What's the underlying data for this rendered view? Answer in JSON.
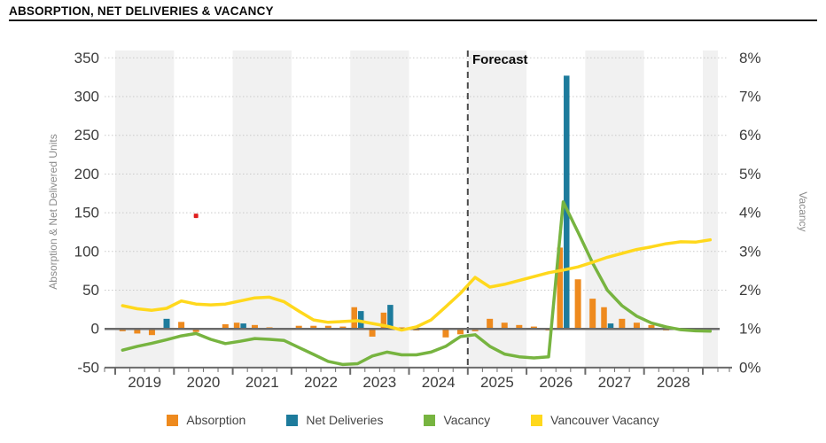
{
  "header": {
    "title": "ABSORPTION, NET DELIVERIES & VACANCY"
  },
  "chart_data": {
    "type": "combo-bar-line",
    "left_axis": {
      "title": "Absorption & Net Delivered Units",
      "tick_labels": [
        "350",
        "300",
        "250",
        "200",
        "150",
        "100",
        "50",
        "0",
        "-50"
      ],
      "tick_values": [
        350,
        300,
        250,
        200,
        150,
        100,
        50,
        0,
        -50
      ],
      "ylim": [
        -50,
        350
      ]
    },
    "right_axis": {
      "title": "Vacancy",
      "tick_labels": [
        "8%",
        "7%",
        "6%",
        "5%",
        "4%",
        "3%",
        "2%",
        "1%",
        "0%"
      ],
      "tick_values": [
        8,
        7,
        6,
        5,
        4,
        3,
        2,
        1,
        0
      ],
      "ylim": [
        0,
        8
      ]
    },
    "x_axis": {
      "years": [
        "2019",
        "2020",
        "2021",
        "2022",
        "2023",
        "2024",
        "2025",
        "2026",
        "2027",
        "2028"
      ]
    },
    "forecast": {
      "label": "Forecast",
      "starts_at": "2025 Q1"
    },
    "quarters": [
      "2019 Q1",
      "2019 Q2",
      "2019 Q3",
      "2019 Q4",
      "2020 Q1",
      "2020 Q2",
      "2020 Q3",
      "2020 Q4",
      "2021 Q1",
      "2021 Q2",
      "2021 Q3",
      "2021 Q4",
      "2022 Q1",
      "2022 Q2",
      "2022 Q3",
      "2022 Q4",
      "2023 Q1",
      "2023 Q2",
      "2023 Q3",
      "2023 Q4",
      "2024 Q1",
      "2024 Q2",
      "2024 Q3",
      "2024 Q4",
      "2025 Q1",
      "2025 Q2",
      "2025 Q3",
      "2025 Q4",
      "2026 Q1",
      "2026 Q2",
      "2026 Q3",
      "2026 Q4",
      "2027 Q1",
      "2027 Q2",
      "2027 Q3",
      "2027 Q4",
      "2028 Q1",
      "2028 Q2",
      "2028 Q3",
      "2028 Q4",
      "2029 Q1"
    ],
    "series": [
      {
        "name": "Absorption",
        "type": "bar",
        "axis": "left",
        "color": "#EE8A1E",
        "values": [
          -3,
          -6,
          -8,
          null,
          9,
          -4,
          null,
          6,
          8,
          5,
          2,
          null,
          4,
          4,
          4,
          3,
          28,
          -10,
          21,
          2,
          -2,
          null,
          -11,
          -7,
          -3,
          13,
          8,
          5,
          3,
          -2,
          105,
          64,
          39,
          28,
          13,
          8,
          5,
          -2,
          -2,
          -2,
          null
        ]
      },
      {
        "name": "Net Deliveries",
        "type": "bar",
        "axis": "left",
        "color": "#1D7B9C",
        "values": [
          null,
          null,
          null,
          13,
          null,
          null,
          null,
          null,
          7,
          null,
          null,
          null,
          null,
          null,
          null,
          null,
          23,
          null,
          31,
          null,
          null,
          null,
          null,
          null,
          null,
          null,
          null,
          null,
          null,
          null,
          327,
          null,
          null,
          7,
          null,
          null,
          null,
          null,
          null,
          null,
          null
        ]
      },
      {
        "name": "Vacancy",
        "type": "line",
        "axis": "right",
        "color": "#77B440",
        "values": [
          0.45,
          0.55,
          0.63,
          0.72,
          0.82,
          0.88,
          0.73,
          0.62,
          0.68,
          0.75,
          0.73,
          0.7,
          0.52,
          0.34,
          0.16,
          0.08,
          0.1,
          0.3,
          0.4,
          0.33,
          0.33,
          0.4,
          0.55,
          0.8,
          0.85,
          0.55,
          0.35,
          0.28,
          0.25,
          0.28,
          4.28,
          3.5,
          2.7,
          2.0,
          1.6,
          1.33,
          1.15,
          1.05,
          0.98,
          0.95,
          0.94
        ]
      },
      {
        "name": "Vancouver Vacancy",
        "type": "line",
        "axis": "right",
        "color": "#FFD81C",
        "values": [
          1.6,
          1.52,
          1.48,
          1.53,
          1.72,
          1.64,
          1.62,
          1.64,
          1.72,
          1.8,
          1.82,
          1.7,
          1.46,
          1.23,
          1.17,
          1.19,
          1.21,
          1.14,
          1.07,
          0.97,
          1.05,
          1.23,
          1.57,
          1.92,
          2.33,
          2.08,
          2.15,
          2.25,
          2.35,
          2.45,
          2.52,
          2.6,
          2.72,
          2.85,
          2.95,
          3.05,
          3.12,
          3.2,
          3.25,
          3.24,
          3.3
        ]
      }
    ],
    "annotations": {
      "red_marker": {
        "quarter": "2020 Q2",
        "value_units": 146,
        "color": "#E01F1F"
      }
    },
    "grid": "dotted horizontal",
    "year_band_color": "#F1F1F1"
  },
  "legend": {
    "items": [
      {
        "label": "Absorption",
        "color": "#EE8A1E"
      },
      {
        "label": "Net Deliveries",
        "color": "#1D7B9C"
      },
      {
        "label": "Vacancy",
        "color": "#77B440"
      },
      {
        "label": "Vancouver Vacancy",
        "color": "#FFD81C"
      }
    ]
  }
}
